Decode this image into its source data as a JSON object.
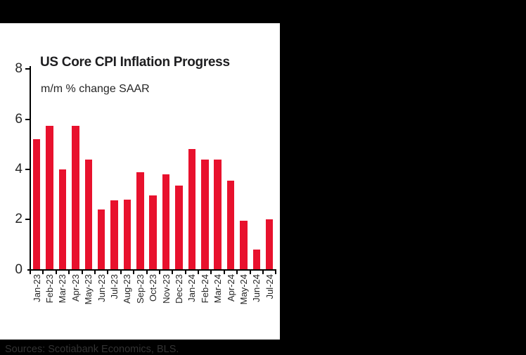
{
  "page": {
    "background_color": "#000000",
    "panel_color": "#ffffff"
  },
  "chart_data": {
    "type": "bar",
    "title": "US Core CPI Inflation Progress",
    "subtitle": "m/m % change SAAR",
    "categories": [
      "Jan-23",
      "Feb-23",
      "Mar-23",
      "Apr-23",
      "May-23",
      "Jun-23",
      "Jul-23",
      "Aug-23",
      "Sep-23",
      "Oct-23",
      "Nov-23",
      "Dec-23",
      "Jan-24",
      "Feb-24",
      "Mar-24",
      "Apr-24",
      "May-24",
      "Jun-24",
      "Jul-24"
    ],
    "values": [
      5.2,
      5.75,
      4.0,
      5.75,
      4.4,
      2.4,
      2.75,
      2.8,
      3.9,
      2.95,
      3.8,
      3.35,
      4.8,
      4.4,
      4.4,
      3.55,
      1.95,
      0.8,
      2.0
    ],
    "xlabel": "",
    "ylabel": "",
    "ylim": [
      0,
      8
    ],
    "yticks": [
      0,
      2,
      4,
      6,
      8
    ],
    "bar_color": "#e8112d",
    "axis_color": "#000000",
    "grid": false,
    "legend": false
  },
  "footer": {
    "sources": "Sources: Scotiabank Economics, BLS."
  }
}
